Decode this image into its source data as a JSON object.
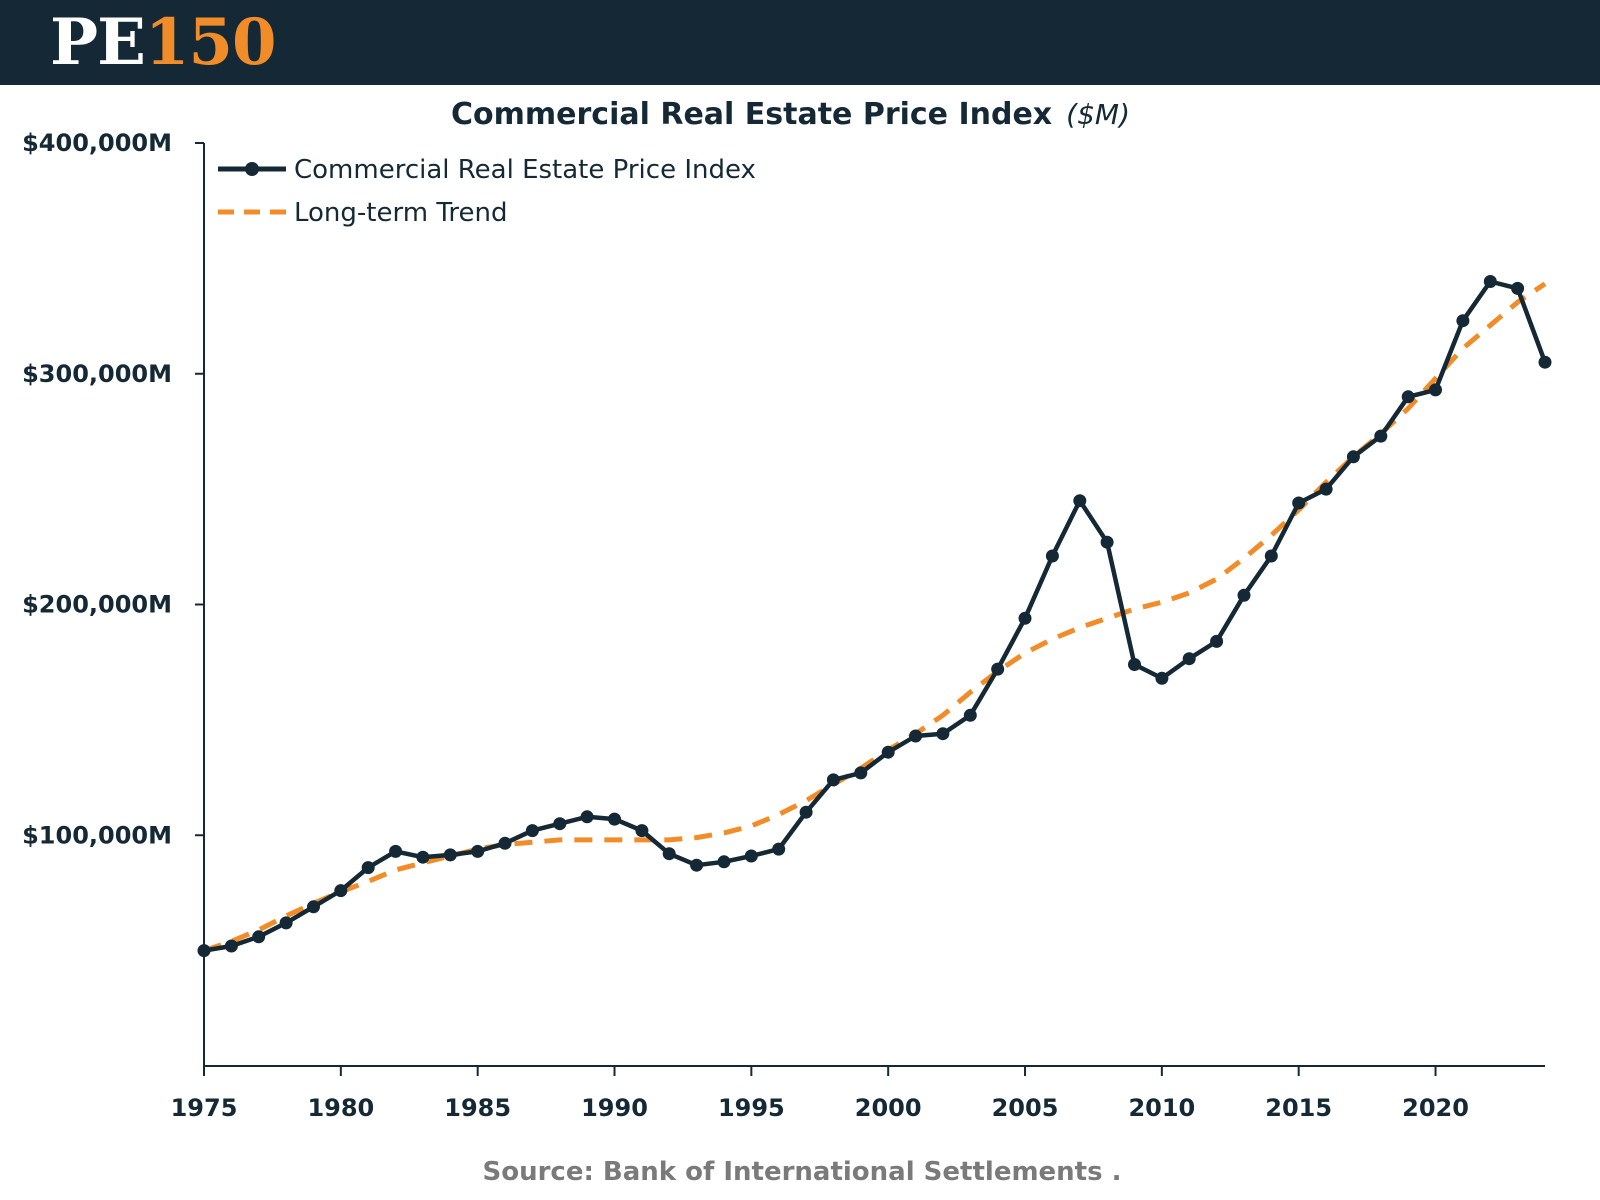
{
  "brand": {
    "logo_pe": "PE",
    "logo_num": "150"
  },
  "chart_data": {
    "type": "line",
    "title": "Commercial Real Estate Price Index",
    "title_unit": "($M)",
    "xlabel": "",
    "ylabel": "",
    "xlim": [
      1975,
      2024
    ],
    "ylim": [
      0,
      400000
    ],
    "y_ticks": [
      {
        "value": 100000,
        "label": "$100,000M"
      },
      {
        "value": 200000,
        "label": "$200,000M"
      },
      {
        "value": 300000,
        "label": "$300,000M"
      },
      {
        "value": 400000,
        "label": "$400,000M"
      }
    ],
    "x_ticks": [
      {
        "value": 1975,
        "label": "1975"
      },
      {
        "value": 1980,
        "label": "1980"
      },
      {
        "value": 1985,
        "label": "1985"
      },
      {
        "value": 1990,
        "label": "1990"
      },
      {
        "value": 1995,
        "label": "1995"
      },
      {
        "value": 2000,
        "label": "2000"
      },
      {
        "value": 2005,
        "label": "2005"
      },
      {
        "value": 2010,
        "label": "2010"
      },
      {
        "value": 2015,
        "label": "2015"
      },
      {
        "value": 2020,
        "label": "2020"
      }
    ],
    "grid": false,
    "legend_position": "top-left",
    "x": [
      1975,
      1976,
      1977,
      1978,
      1979,
      1980,
      1981,
      1982,
      1983,
      1984,
      1985,
      1986,
      1987,
      1988,
      1989,
      1990,
      1991,
      1992,
      1993,
      1994,
      1995,
      1996,
      1997,
      1998,
      1999,
      2000,
      2001,
      2002,
      2003,
      2004,
      2005,
      2006,
      2007,
      2008,
      2009,
      2010,
      2011,
      2012,
      2013,
      2014,
      2015,
      2016,
      2017,
      2018,
      2019,
      2020,
      2021,
      2022,
      2023,
      2024
    ],
    "series": [
      {
        "name": "Commercial Real Estate Price Index",
        "style": "solid-markers",
        "color": "#142935",
        "values": [
          50000,
          52000,
          56000,
          62000,
          69000,
          76000,
          86000,
          93000,
          90500,
          91500,
          93000,
          96500,
          102000,
          105000,
          108000,
          107000,
          102000,
          92000,
          87000,
          88500,
          91000,
          94000,
          110000,
          124000,
          127000,
          136000,
          143000,
          144000,
          152000,
          172000,
          194000,
          221000,
          245000,
          227000,
          174000,
          168000,
          176500,
          184000,
          204000,
          221000,
          244000,
          250000,
          264000,
          273000,
          290000,
          293000,
          323000,
          340000,
          337000,
          305000
        ]
      },
      {
        "name": "Long-term Trend",
        "style": "dashed",
        "color": "#f28c28",
        "values": [
          50000,
          54000,
          59000,
          65000,
          70500,
          75500,
          80000,
          85000,
          88000,
          91000,
          94000,
          96000,
          97000,
          98000,
          98000,
          98000,
          98000,
          98000,
          99000,
          101000,
          104000,
          109000,
          115000,
          122000,
          129000,
          137000,
          144000,
          152000,
          162000,
          171000,
          179000,
          185000,
          190000,
          194000,
          198000,
          201000,
          205000,
          211000,
          220000,
          230000,
          241000,
          253000,
          264000,
          274000,
          285000,
          298000,
          311000,
          321000,
          331000,
          339000
        ]
      }
    ],
    "source": "Source: Bank of International Settlements ."
  }
}
